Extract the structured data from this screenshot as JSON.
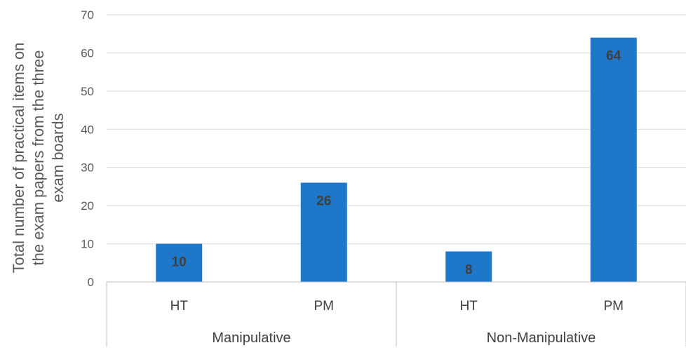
{
  "chart_data": {
    "type": "bar",
    "title": "",
    "ylabel_lines": [
      "Total number of practical items on",
      "the exam papers from the three",
      "exam boards"
    ],
    "ylim": [
      0,
      70
    ],
    "yticks": [
      0,
      10,
      20,
      30,
      40,
      50,
      60,
      70
    ],
    "groups": [
      "Manipulative",
      "Non-Manipulative"
    ],
    "categories": [
      "HT",
      "PM",
      "HT",
      "PM"
    ],
    "category_group": [
      0,
      0,
      1,
      1
    ],
    "values": [
      10,
      26,
      8,
      64
    ],
    "bar_color": "#1f77c9",
    "grid": true,
    "legend": "none"
  }
}
